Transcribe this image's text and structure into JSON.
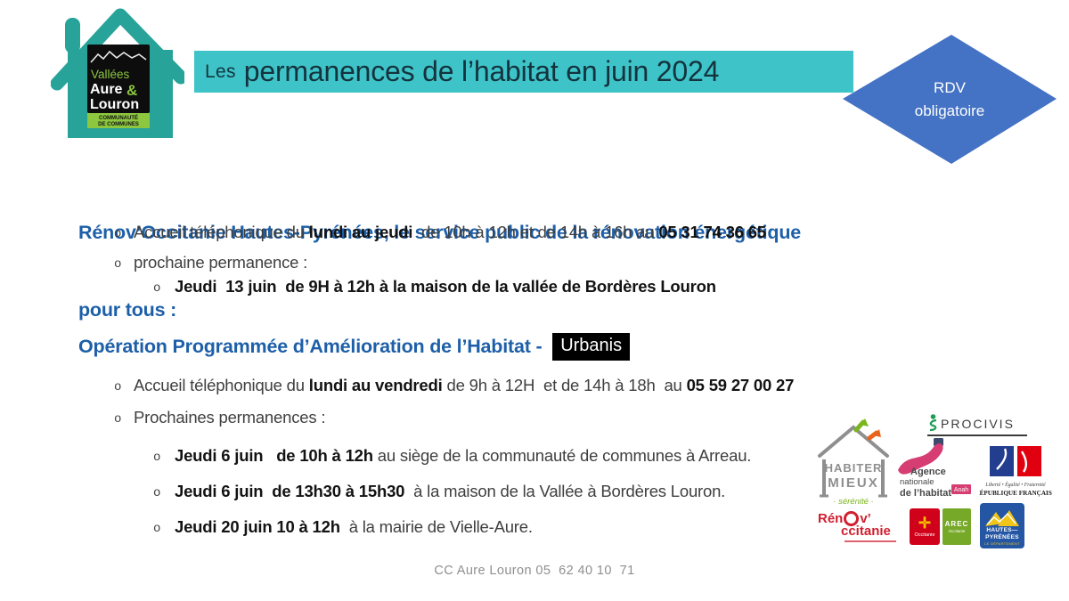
{
  "slide": {
    "cc_logo": {
      "line1": "Vallées",
      "line2": "Aure",
      "amp": "&",
      "line3": "Louron",
      "band1": "COMMUNAUTÉ",
      "band2": "DE COMMUNES"
    },
    "banner": {
      "prefix": "Les",
      "title": "permanences de l’habitat en juin 2024"
    },
    "badge": {
      "line1": "RDV",
      "line2": "obligatoire"
    },
    "bullet_marker": "o",
    "sections": [
      {
        "title_line1": "Rénov’Occitanie Hautes-Pyrénées, le service public de la rénovation énergétique",
        "title_line2": "pour tous :",
        "bullets": [
          {
            "segments": [
              {
                "t": "Accueil téléphonique du ",
                "b": false
              },
              {
                "t": "lundi au jeudi",
                "b": true
              },
              {
                "t": "  de 10h à 12h et de 14h à 16h au ",
                "b": false
              },
              {
                "t": "05 31 74 36 65",
                "b": true
              }
            ]
          },
          {
            "segments": [
              {
                "t": "prochaine permanence :",
                "b": false
              }
            ]
          },
          {
            "segments": [
              {
                "t": "Jeudi  13 juin  de 9H à 12h à la maison de la vallée de Bordères Louron",
                "b": true
              }
            ]
          }
        ]
      },
      {
        "title": "Opération Programmée d’Amélioration de l’Habitat - ",
        "title_badge": "Urbanis",
        "bullets": [
          {
            "segments": [
              {
                "t": "Accueil téléphonique du ",
                "b": false
              },
              {
                "t": "lundi au vendredi",
                "b": true
              },
              {
                "t": " de 9h à 12H  et de 14h à 18h  au ",
                "b": false
              },
              {
                "t": "05 59 27 00 27",
                "b": true
              }
            ]
          },
          {
            "segments": [
              {
                "t": "Prochaines permanences :",
                "b": false
              }
            ]
          },
          {
            "segments": [
              {
                "t": "Jeudi 6 juin   de 10h à 12h",
                "b": true
              },
              {
                "t": " au siège de la communauté de communes à Arreau.",
                "b": false
              }
            ]
          },
          {
            "segments": [
              {
                "t": "Jeudi 6 juin  de 13h30 à 15h30",
                "b": true
              },
              {
                "t": "  à la maison de la Vallée à Bordères Louron.",
                "b": false
              }
            ]
          },
          {
            "segments": [
              {
                "t": "Jeudi 20 juin 10 à 12h",
                "b": true
              },
              {
                "t": "  à la mairie de Vielle-Aure.",
                "b": false
              }
            ]
          }
        ]
      }
    ],
    "logos": {
      "habiter_mieux": {
        "line1": "HABITER",
        "line2": "MIEUX",
        "tagline": "· sérénité ·"
      },
      "procivis": {
        "name": "PROCIVIS"
      },
      "anah": {
        "l1": "Agence",
        "l2": "nationale",
        "l3": "de l’habitat",
        "badge": "Anah"
      },
      "republique": {
        "motto": "Liberté • Égalité • Fraternité",
        "name": "RÉPUBLIQUE FRANÇAISE"
      },
      "renov_occitanie": {
        "part1": "Rén",
        "part2": "v’",
        "part3": "ccitanie"
      },
      "occitanie": {
        "name": "Occitanie",
        "cross": "✛"
      },
      "arec": {
        "name": "AREC",
        "sub": "Occitanie"
      },
      "hautes_pyrenees": {
        "line1": "HAUTES—",
        "line2": "PYRÉNÉES",
        "sub": "LE DÉPARTEMENT"
      }
    },
    "footer": "CC Aure Louron 05  62 40 10  71",
    "colors": {
      "banner_teal": "#3ec4c8",
      "house_teal": "#27a39a",
      "badge_blue": "#4472c4",
      "heading_blue": "#1d5fa8",
      "band_green": "#8dc63f"
    }
  }
}
